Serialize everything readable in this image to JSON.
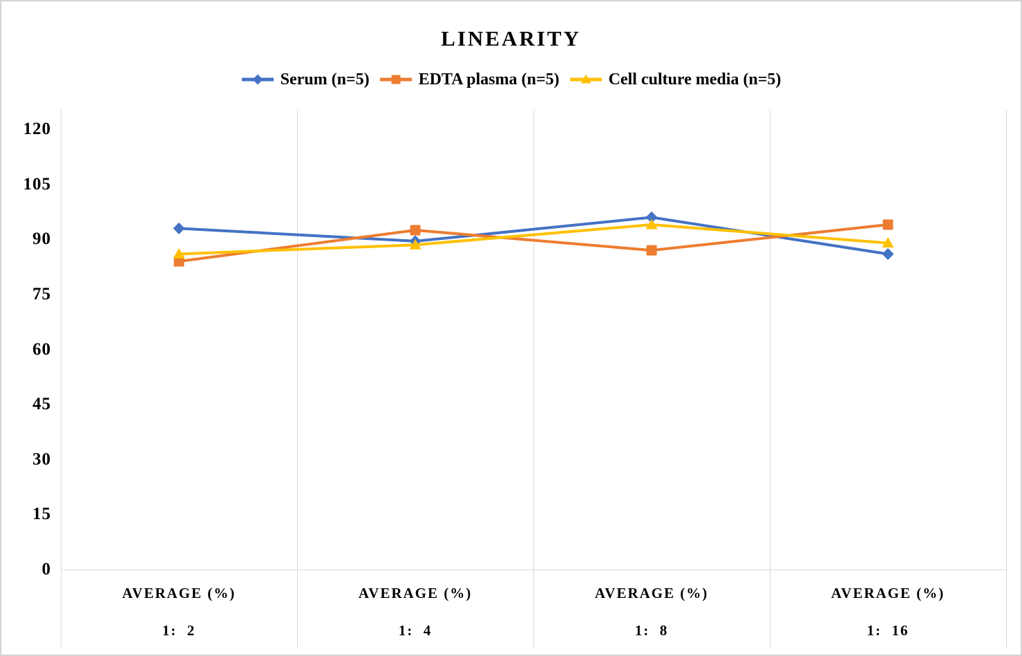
{
  "chart_data": {
    "type": "line",
    "title": "LINEARITY",
    "category_header": "AVERAGE (%)",
    "categories": [
      "1:  2",
      "1:  4",
      "1:  8",
      "1:  16"
    ],
    "series": [
      {
        "name": "Serum (n=5)",
        "color": "#4472C4",
        "marker": "diamond",
        "values": [
          93,
          89.5,
          96,
          86
        ]
      },
      {
        "name": "EDTA plasma (n=5)",
        "color": "#ED7D31",
        "marker": "square",
        "values": [
          84,
          92.5,
          87,
          94
        ]
      },
      {
        "name": "Cell culture media (n=5)",
        "color": "#FFC000",
        "marker": "triangle",
        "values": [
          86,
          88.5,
          94,
          89
        ]
      }
    ],
    "yticks": [
      0,
      15,
      30,
      45,
      60,
      75,
      90,
      105,
      120
    ],
    "ylim": [
      0,
      120
    ],
    "ylabel": "",
    "xlabel": "",
    "grid": "vertical-category-separators-only",
    "gridline_color": "#d9d9d9",
    "legend_position": "top",
    "text_color": "#000000"
  }
}
